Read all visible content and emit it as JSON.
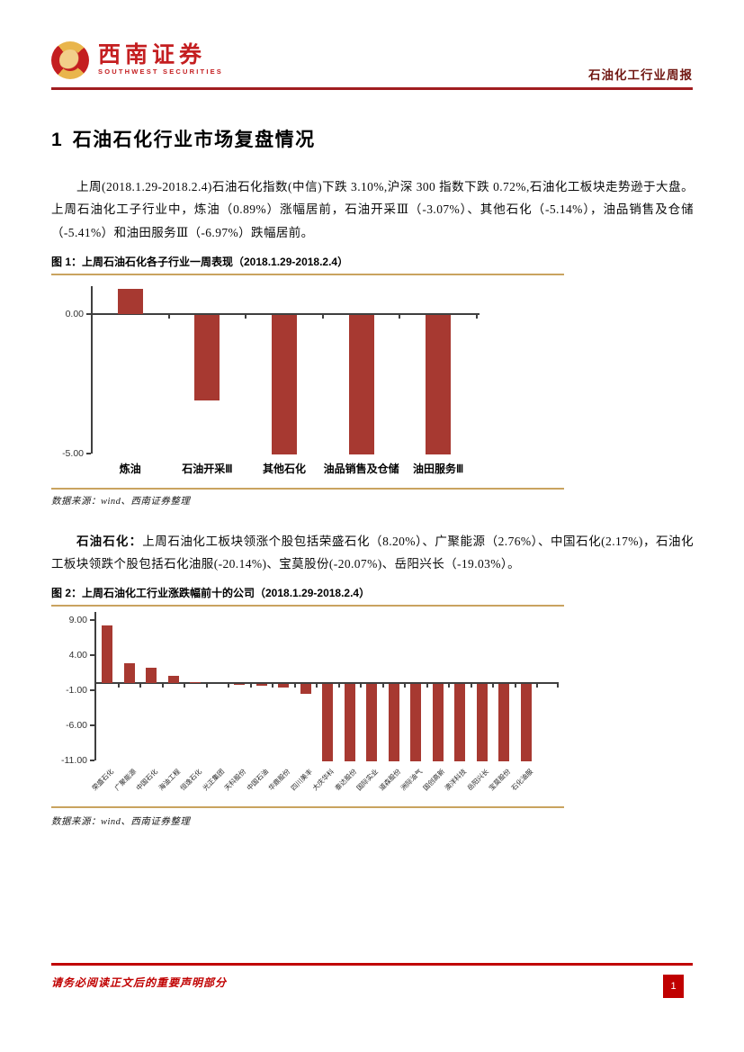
{
  "header": {
    "logo_cn": "西南证券",
    "logo_en": "SOUTHWEST SECURITIES",
    "report_type": "石油化工行业周报"
  },
  "section": {
    "number": "1",
    "title": "石油石化行业市场复盘情况"
  },
  "paragraphs": {
    "p1": "上周(2018.1.29-2018.2.4)石油石化指数(中信)下跌 3.10%,沪深 300 指数下跌 0.72%,石油化工板块走势逊于大盘。上周石油化工子行业中，炼油（0.89%）涨幅居前，石油开采Ⅲ（-3.07%）、其他石化（-5.14%），油品销售及仓储（-5.41%）和油田服务Ⅲ（-6.97%）跌幅居前。",
    "p2_lead": "石油石化：",
    "p2_body": "上周石油化工板块领涨个股包括荣盛石化（8.20%）、广聚能源（2.76%）、中国石化(2.17%)，石油化工板块领跌个股包括石化油服(-20.14%)、宝莫股份(-20.07%)、岳阳兴长（-19.03%）。"
  },
  "figure1": {
    "caption": "图 1：上周石油石化各子行业一周表现（2018.1.29-2018.2.4）",
    "source": "数据来源：wind、西南证券整理"
  },
  "figure2": {
    "caption": "图 2：上周石油化工行业涨跌幅前十的公司（2018.1.29-2018.2.4）",
    "source": "数据来源：wind、西南证券整理"
  },
  "footer": {
    "disclaimer": "请务必阅读正文后的重要声明部分",
    "page_number": "1"
  },
  "colors": {
    "bar_red": "#a73931",
    "accent_red": "#c00000",
    "header_rule_red": "#a01d20",
    "tan_line": "#c9a35f",
    "logo_red": "#c41e20"
  },
  "chart_data": [
    {
      "type": "bar",
      "title": "图 1：上周石油石化各子行业一周表现（2018.1.29-2018.2.4）",
      "categories": [
        "炼油",
        "石油开采Ⅲ",
        "其他石化",
        "油品销售及仓储",
        "油田服务Ⅲ"
      ],
      "values": [
        0.89,
        -3.07,
        -5.14,
        -5.41,
        -6.97
      ],
      "ylim": [
        -5,
        1.15
      ],
      "yticks": [
        0,
        -5
      ],
      "ytick_labels": [
        "0.00",
        "-5.00"
      ],
      "bar_color": "#a73931",
      "grid": false,
      "legend": "none",
      "note": "bars with values below -5.00 (其他石化 -5.14, 油品销售及仓储 -5.41, 油田服务Ⅲ -6.97) are clipped at the axis minimum -5.00"
    },
    {
      "type": "bar",
      "title": "图 2：上周石油化工行业涨跌幅前十的公司（2018.1.29-2018.2.4）",
      "categories": [
        "荣盛石化",
        "广聚能源",
        "中国石化",
        "海油工程",
        "恒逸石化",
        "光正集团",
        "天科股份",
        "中国石油",
        "华鼎股份",
        "四川美丰",
        "大庆华科",
        "泰达股份",
        "国际实业",
        "道森股份",
        "洲际油气",
        "国创高新",
        "澳洋科技",
        "岳阳兴长",
        "宝莫股份",
        "石化油服"
      ],
      "values": [
        8.2,
        2.76,
        2.17,
        1.0,
        0.1,
        0.0,
        -0.1,
        -0.3,
        -0.5,
        -1.4,
        -11,
        -11,
        -11,
        -11,
        -11,
        -11,
        -11,
        -19.03,
        -20.07,
        -20.14
      ],
      "ylim": [
        -11,
        10
      ],
      "yticks": [
        9,
        4,
        -1,
        -6,
        -11
      ],
      "ytick_labels": [
        "9.00",
        "4.00",
        "-1.00",
        "-6.00",
        "-11.00"
      ],
      "bar_color": "#a73931",
      "grid": false,
      "legend": "none",
      "note": "bars 11-17 extend below the -11.00 axis minimum and are clipped (exact values not shown); per report text: 荣盛石化 8.20, 广聚能源 2.76, 中国石化 2.17, 岳阳兴长 -19.03, 宝莫股份 -20.07, 石化油服 -20.14; values for 海油工程 through 四川美丰 estimated from bar heights"
    }
  ]
}
